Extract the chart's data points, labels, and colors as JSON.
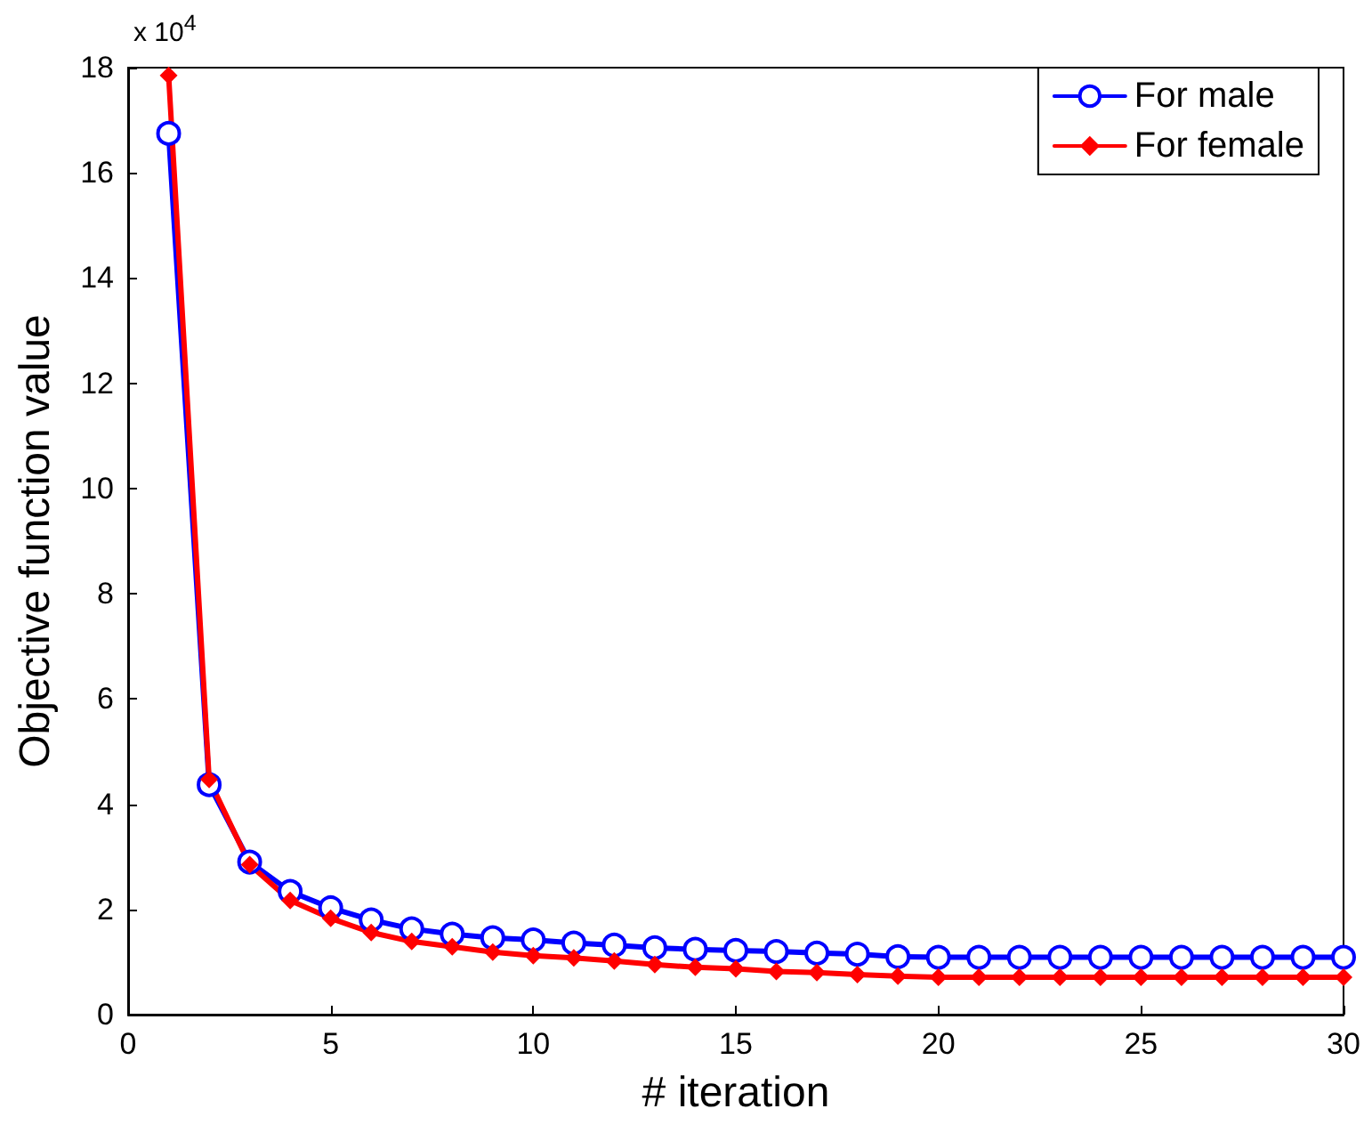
{
  "chart_data": {
    "type": "line",
    "xlabel": "# iteration",
    "ylabel": "Objective function value",
    "annotations": [
      "x 10$^{4}$"
    ],
    "x": [
      1,
      2,
      3,
      4,
      5,
      6,
      7,
      8,
      9,
      10,
      11,
      12,
      13,
      14,
      15,
      16,
      17,
      18,
      19,
      20,
      21,
      22,
      23,
      24,
      25,
      26,
      27,
      28,
      29,
      30
    ],
    "series": [
      {
        "name": "For male",
        "color": "#0000ff",
        "marker": "circle",
        "values": [
          16.75,
          4.37,
          2.9,
          2.34,
          2.03,
          1.8,
          1.63,
          1.53,
          1.46,
          1.42,
          1.36,
          1.32,
          1.27,
          1.24,
          1.22,
          1.2,
          1.17,
          1.15,
          1.1,
          1.09,
          1.09,
          1.09,
          1.09,
          1.09,
          1.09,
          1.09,
          1.09,
          1.09,
          1.09,
          1.09
        ]
      },
      {
        "name": "For female",
        "color": "#ff0000",
        "marker": "diamond",
        "values": [
          17.85,
          4.47,
          2.85,
          2.17,
          1.83,
          1.56,
          1.39,
          1.29,
          1.19,
          1.12,
          1.08,
          1.02,
          0.95,
          0.9,
          0.87,
          0.82,
          0.8,
          0.76,
          0.73,
          0.71,
          0.71,
          0.71,
          0.71,
          0.71,
          0.71,
          0.71,
          0.71,
          0.71,
          0.71,
          0.71
        ]
      }
    ],
    "xlim": [
      0,
      30
    ],
    "xticks": [
      0,
      5,
      10,
      15,
      20,
      25,
      30
    ],
    "ylim": [
      0,
      18
    ],
    "yticks": [
      0,
      2,
      4,
      6,
      8,
      10,
      12,
      14,
      16,
      18
    ],
    "grid": false,
    "legend": "top right",
    "line_style": "solid"
  }
}
